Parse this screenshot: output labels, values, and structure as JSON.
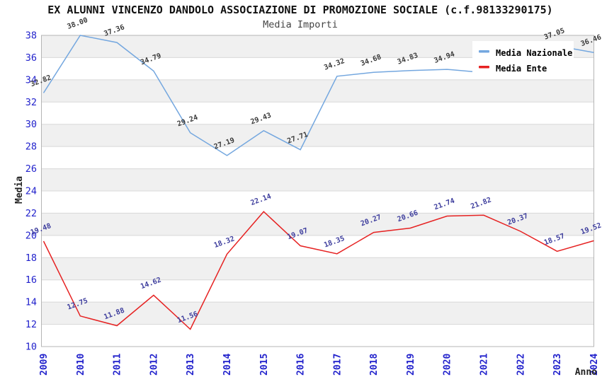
{
  "title": "EX ALUNNI VINCENZO DANDOLO ASSOCIAZIONE DI PROMOZIONE SOCIALE (c.f.98133290175)",
  "subtitle": "Media Importi",
  "colors": {
    "background": "#ffffff",
    "band": "#f0f0f0",
    "gridline": "#d8d8d8",
    "plot_border": "#b5b5b5",
    "axis_tick_text": "#2222cc",
    "nazionale_line": "#74a7df",
    "ente_line": "#e62222",
    "nazionale_label_text": "#3a3a3a",
    "ente_label_text": "#3d3d9d",
    "legend_background": "#ffffff"
  },
  "legend": {
    "items": [
      {
        "label": "Media Nazionale"
      },
      {
        "label": "Media Ente"
      }
    ]
  },
  "chart_data": {
    "type": "line",
    "title": "Media Importi",
    "x": [
      "2009",
      "2010",
      "2011",
      "2012",
      "2013",
      "2014",
      "2015",
      "2016",
      "2017",
      "2018",
      "2019",
      "2020",
      "2021",
      "2022",
      "2023",
      "2024"
    ],
    "xlabel": "Anno",
    "ylabel": "Media",
    "ylim": [
      10,
      38
    ],
    "ytick_step": 2,
    "grid": true,
    "banded_background": true,
    "legend_position": "top-right",
    "series": [
      {
        "name": "Media Nazionale",
        "color": "#74a7df",
        "label_color": "#3a3a3a",
        "values": [
          32.82,
          38.0,
          37.36,
          34.79,
          29.24,
          27.19,
          29.43,
          27.71,
          34.32,
          34.68,
          34.83,
          34.94,
          34.65,
          35.9,
          37.05,
          36.46
        ],
        "labels": [
          "32.82",
          "38.00",
          "37.36",
          "34.79",
          "29.24",
          "27.19",
          "29.43",
          "27.71",
          "34.32",
          "34.68",
          "34.83",
          "34.94",
          "",
          "",
          "37.05",
          "36.46"
        ]
      },
      {
        "name": "Media Ente",
        "color": "#e62222",
        "label_color": "#3d3d9d",
        "values": [
          19.48,
          12.75,
          11.88,
          14.62,
          11.56,
          18.32,
          22.14,
          19.07,
          18.35,
          20.27,
          20.66,
          21.74,
          21.82,
          20.37,
          18.57,
          19.52
        ],
        "labels": [
          "19.48",
          "12.75",
          "11.88",
          "14.62",
          "11.56",
          "18.32",
          "22.14",
          "19.07",
          "18.35",
          "20.27",
          "20.66",
          "21.74",
          "21.82",
          "20.37",
          "18.57",
          "19.52"
        ]
      }
    ]
  }
}
